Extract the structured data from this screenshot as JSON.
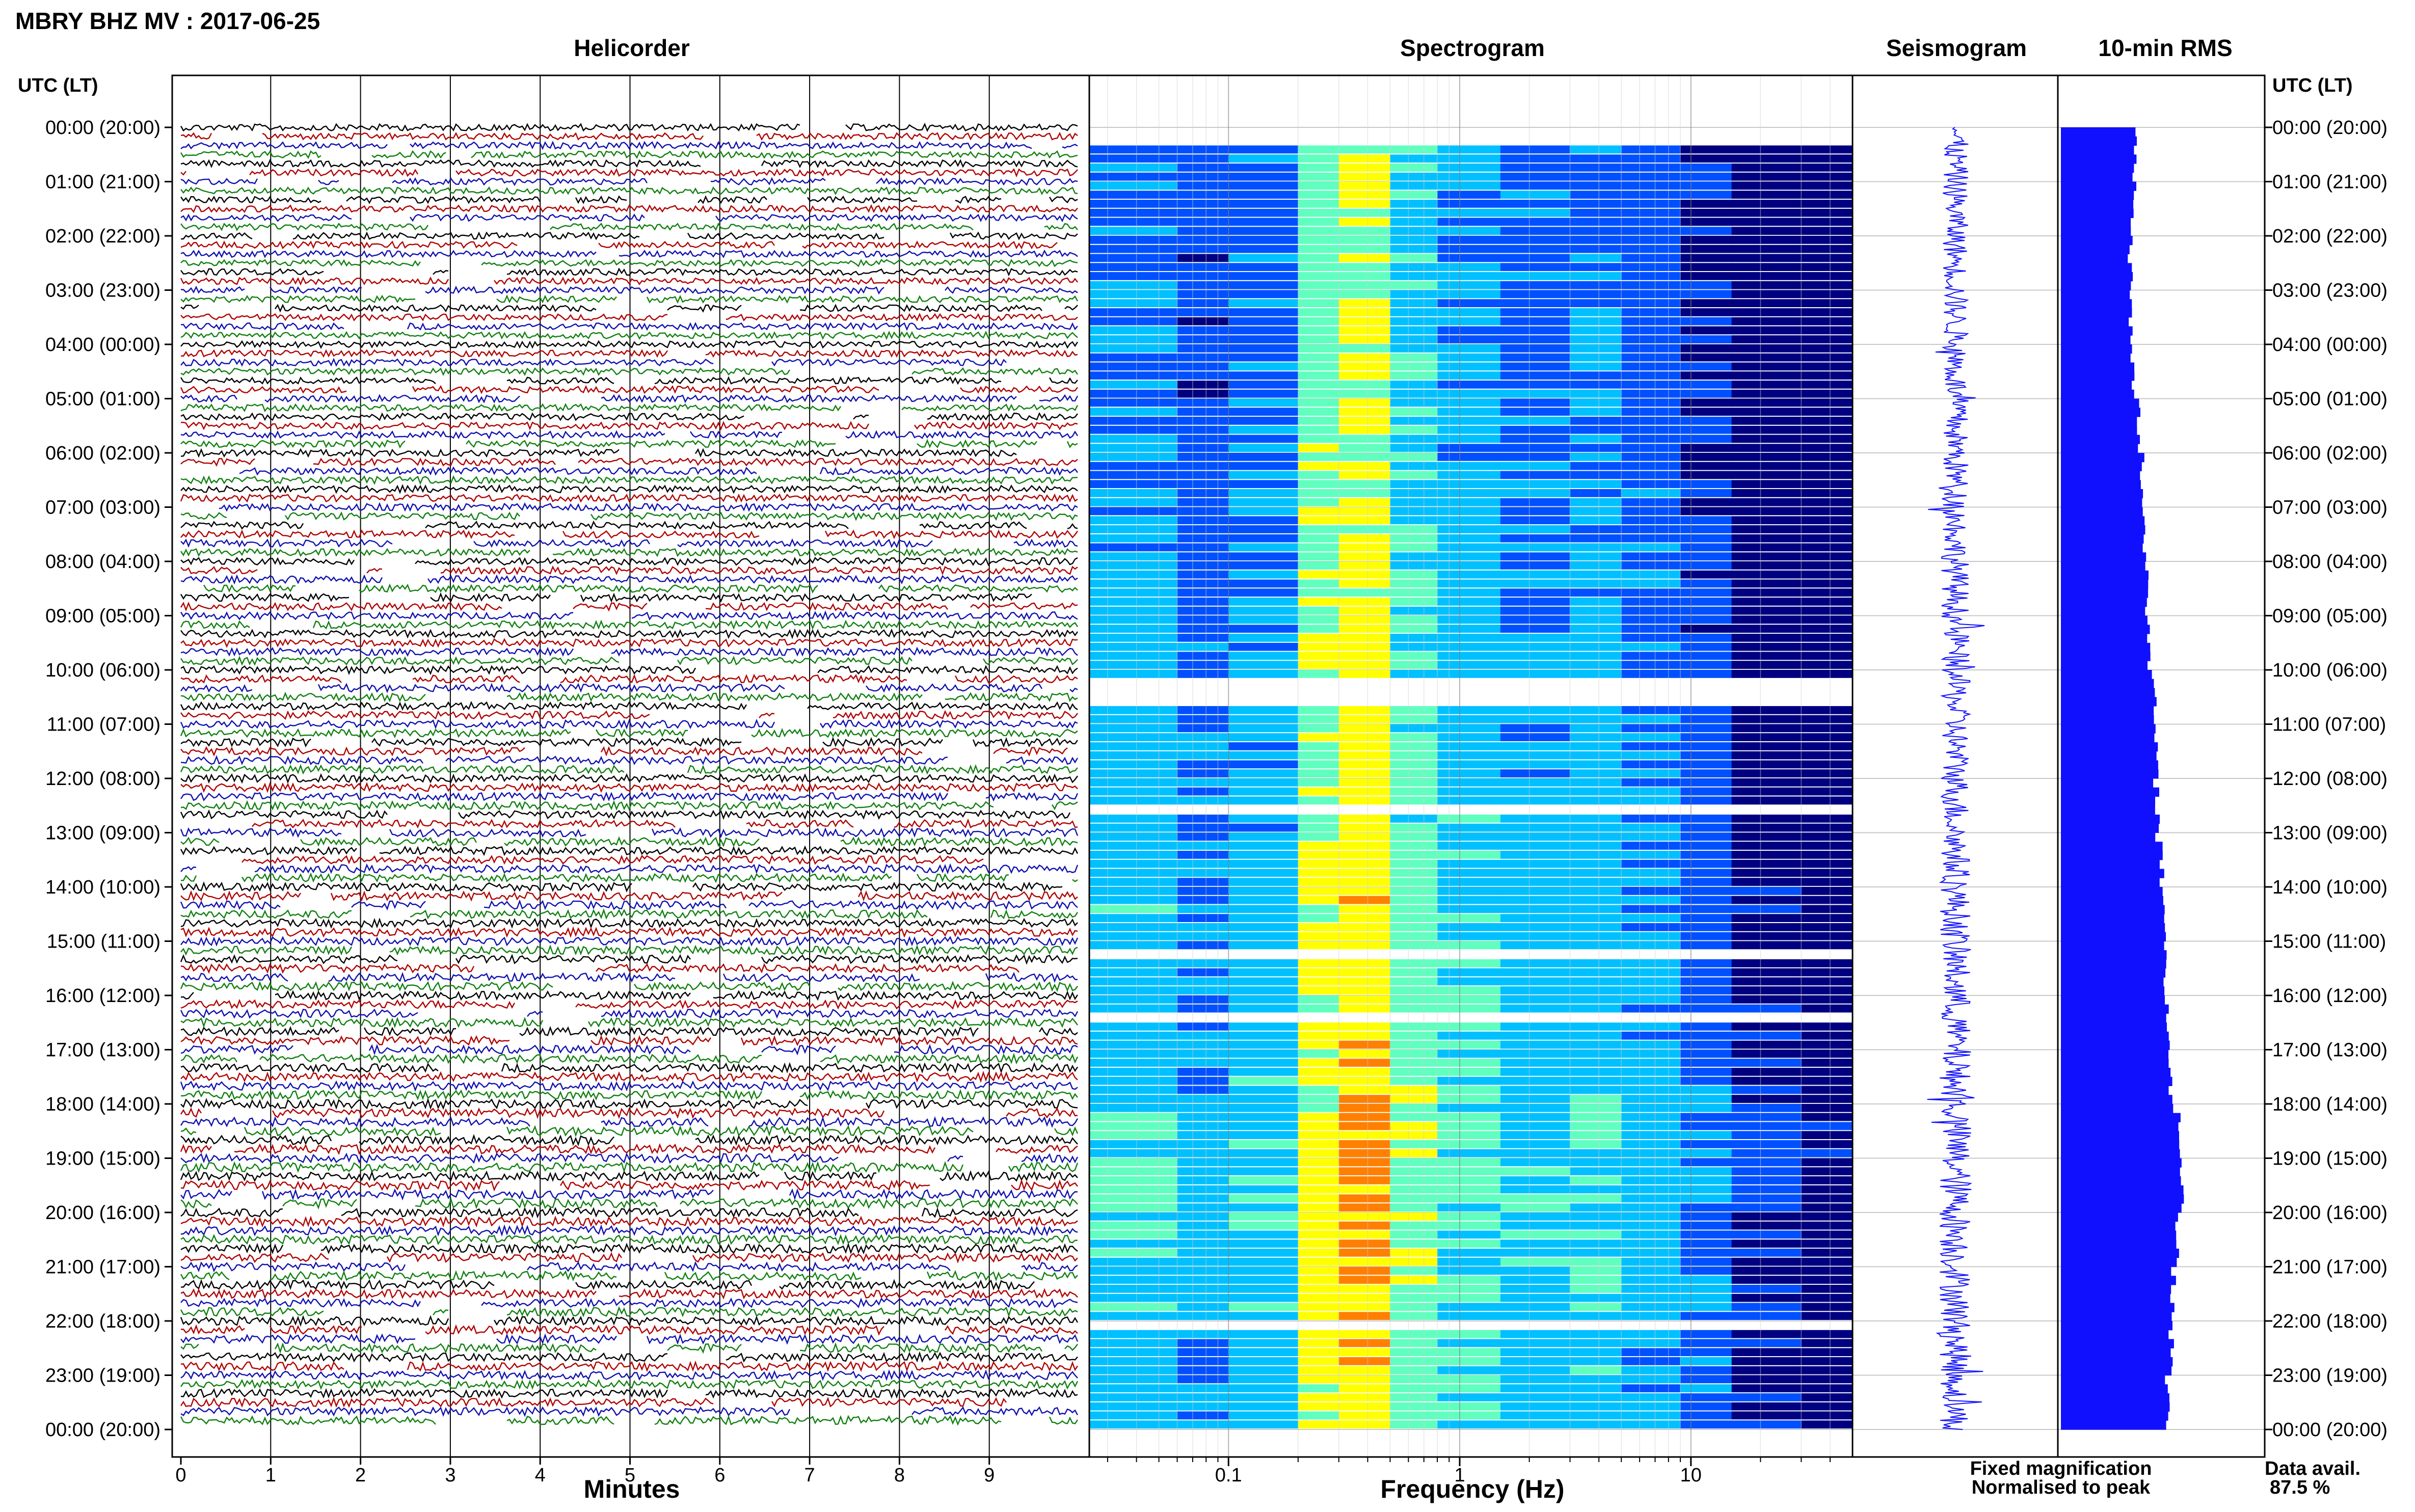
{
  "header": {
    "title": "MBRY BHZ MV : 2017-06-25",
    "left_axis_label": "UTC (LT)",
    "right_axis_label": "UTC (LT)"
  },
  "panels": {
    "helicorder": "Helicorder",
    "spectrogram": "Spectrogram",
    "seismogram": "Seismogram",
    "rms": "10-min RMS"
  },
  "axes": {
    "minutes_label": "Minutes",
    "frequency_label": "Frequency (Hz)",
    "minute_ticks": [
      "0",
      "1",
      "2",
      "3",
      "4",
      "5",
      "6",
      "7",
      "8",
      "9"
    ],
    "freq_ticks": [
      "0.1",
      "1",
      "10"
    ]
  },
  "legend": {
    "fixed": "Fixed magnification",
    "normalised": "Normalised to peak",
    "fixed_color": "#1010ff",
    "normalised_color": "#ff0000"
  },
  "availability": {
    "label": "Data avail.",
    "value": "87.5 %"
  },
  "chart_data": [
    {
      "type": "line",
      "name": "helicorder",
      "x_unit": "minutes",
      "xlim": [
        0,
        10
      ],
      "rows_per_hour": 6,
      "trace_colors": [
        "#000000",
        "#b00000",
        "#1010b0",
        "#108010"
      ],
      "time_labels": [
        "00:00 (20:00)",
        "01:00 (21:00)",
        "02:00 (22:00)",
        "03:00 (23:00)",
        "04:00 (00:00)",
        "05:00 (01:00)",
        "06:00 (02:00)",
        "07:00 (03:00)",
        "08:00 (04:00)",
        "09:00 (05:00)",
        "10:00 (06:00)",
        "11:00 (07:00)",
        "12:00 (08:00)",
        "13:00 (09:00)",
        "14:00 (10:00)",
        "15:00 (11:00)",
        "16:00 (12:00)",
        "17:00 (13:00)",
        "18:00 (14:00)",
        "19:00 (15:00)",
        "20:00 (16:00)",
        "21:00 (17:00)",
        "22:00 (18:00)",
        "23:00 (19:00)",
        "00:00 (20:00)"
      ]
    },
    {
      "type": "heatmap",
      "name": "spectrogram",
      "x_scale": "log",
      "x_unit": "Hz",
      "xlim": [
        0.025,
        50
      ],
      "colormap": [
        "#000080",
        "#0050ff",
        "#00c0ff",
        "#60ffc0",
        "#ffff00",
        "#ff8000",
        "#ff0000"
      ]
    },
    {
      "type": "bar",
      "name": "10-min RMS",
      "orientation": "horizontal",
      "hourly_level": [
        0.38,
        0.37,
        0.36,
        0.36,
        0.37,
        0.4,
        0.42,
        0.43,
        0.45,
        0.46,
        0.48,
        0.49,
        0.5,
        0.52,
        0.54,
        0.54,
        0.55,
        0.57,
        0.62,
        0.63,
        0.6,
        0.58,
        0.57,
        0.55
      ]
    }
  ]
}
